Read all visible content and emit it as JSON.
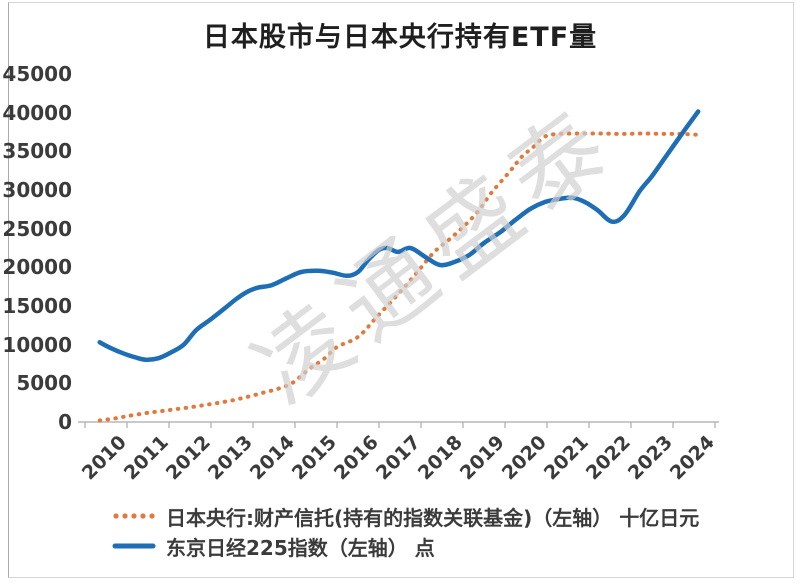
{
  "title": "日本股市与日本央行持有ETF量",
  "watermark": "凌通盛泰",
  "colors": {
    "boj_orange": "#E2793C",
    "nikkei_blue": "#1E6EB5",
    "axis_line": "#B7B7B7",
    "axis_text": "#3B3B3B",
    "title_text": "#1F1F1F",
    "watermark_gray": "#CFCFCF"
  },
  "legend": {
    "position": "bottom-left",
    "items": [
      {
        "label": "日本央行:财产信托(持有的指数关联基金)（左轴） 十亿日元",
        "style": "dotted"
      },
      {
        "label": "东京日经225指数（左轴） 点",
        "style": "solid"
      }
    ]
  },
  "chart_data": {
    "type": "line",
    "title": "日本股市与日本央行持有ETF量",
    "grid": "off",
    "y_axis": {
      "min": 0,
      "max": 45000,
      "step": 5000
    },
    "x_axis": {
      "labels": [
        "2010",
        "2011",
        "2012",
        "2013",
        "2014",
        "2015",
        "2016",
        "2017",
        "2018",
        "2019",
        "2020",
        "2021",
        "2022",
        "2023",
        "2024"
      ]
    },
    "series": [
      {
        "name": "日本央行:财产信托(持有的指数关联基金)（左轴） 十亿日元",
        "unit": "十亿日元",
        "style": "dotted",
        "color": "#E2793C",
        "points": [
          [
            2010.35,
            200
          ],
          [
            2010.7,
            450
          ],
          [
            2011.05,
            800
          ],
          [
            2011.45,
            1150
          ],
          [
            2011.8,
            1400
          ],
          [
            2012.15,
            1650
          ],
          [
            2012.5,
            1900
          ],
          [
            2012.85,
            2200
          ],
          [
            2013.2,
            2500
          ],
          [
            2013.55,
            2850
          ],
          [
            2013.9,
            3300
          ],
          [
            2014.25,
            3800
          ],
          [
            2014.6,
            4300
          ],
          [
            2014.95,
            5100
          ],
          [
            2015.35,
            6900
          ],
          [
            2015.7,
            8200
          ],
          [
            2016.0,
            9700
          ],
          [
            2016.5,
            11000
          ],
          [
            2016.95,
            13600
          ],
          [
            2017.45,
            16500
          ],
          [
            2017.9,
            19300
          ],
          [
            2018.3,
            21900
          ],
          [
            2018.65,
            23500
          ],
          [
            2019.0,
            25200
          ],
          [
            2019.35,
            27200
          ],
          [
            2019.7,
            29800
          ],
          [
            2020.1,
            32300
          ],
          [
            2020.4,
            34300
          ],
          [
            2020.65,
            35450
          ],
          [
            2020.95,
            36900
          ],
          [
            2021.3,
            37250
          ],
          [
            2021.8,
            37300
          ],
          [
            2022.3,
            37300
          ],
          [
            2022.8,
            37250
          ],
          [
            2023.3,
            37300
          ],
          [
            2023.8,
            37250
          ],
          [
            2024.2,
            37250
          ],
          [
            2024.55,
            37150
          ]
        ]
      },
      {
        "name": "东京日经225指数（左轴） 点",
        "unit": "点",
        "style": "solid",
        "color": "#1E6EB5",
        "points": [
          [
            2010.35,
            10300
          ],
          [
            2010.6,
            9600
          ],
          [
            2010.9,
            8900
          ],
          [
            2011.2,
            8350
          ],
          [
            2011.45,
            8050
          ],
          [
            2011.75,
            8250
          ],
          [
            2012.05,
            9000
          ],
          [
            2012.35,
            10000
          ],
          [
            2012.65,
            11900
          ],
          [
            2013.0,
            13300
          ],
          [
            2013.35,
            14800
          ],
          [
            2013.6,
            15900
          ],
          [
            2013.85,
            16800
          ],
          [
            2014.1,
            17350
          ],
          [
            2014.45,
            17700
          ],
          [
            2014.8,
            18600
          ],
          [
            2015.15,
            19400
          ],
          [
            2015.55,
            19550
          ],
          [
            2015.9,
            19300
          ],
          [
            2016.25,
            18900
          ],
          [
            2016.5,
            19400
          ],
          [
            2016.75,
            21000
          ],
          [
            2017.0,
            22250
          ],
          [
            2017.2,
            22500
          ],
          [
            2017.45,
            22000
          ],
          [
            2017.75,
            22500
          ],
          [
            2018.1,
            21350
          ],
          [
            2018.45,
            20300
          ],
          [
            2018.8,
            20700
          ],
          [
            2019.15,
            21600
          ],
          [
            2019.5,
            23150
          ],
          [
            2019.9,
            24600
          ],
          [
            2020.25,
            26150
          ],
          [
            2020.6,
            27550
          ],
          [
            2020.95,
            28450
          ],
          [
            2021.3,
            28850
          ],
          [
            2021.6,
            29000
          ],
          [
            2021.9,
            28450
          ],
          [
            2022.2,
            27400
          ],
          [
            2022.55,
            25900
          ],
          [
            2022.85,
            26800
          ],
          [
            2023.2,
            29800
          ],
          [
            2023.5,
            31800
          ],
          [
            2023.8,
            34100
          ],
          [
            2024.1,
            36400
          ],
          [
            2024.35,
            38300
          ],
          [
            2024.6,
            40150
          ]
        ]
      }
    ]
  }
}
